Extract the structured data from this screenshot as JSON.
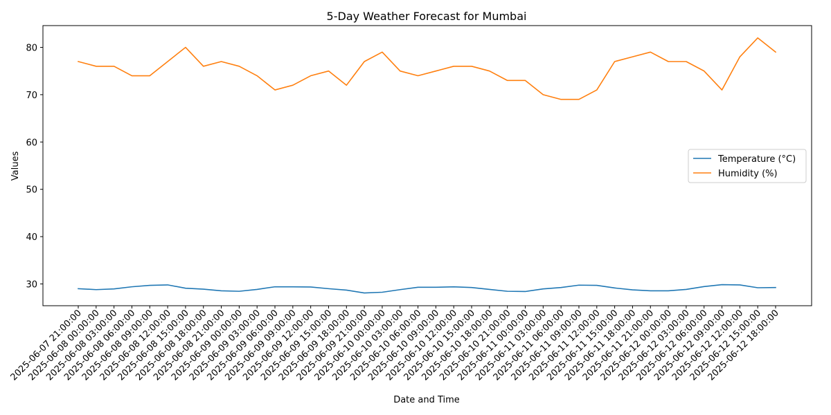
{
  "chart_data": {
    "type": "line",
    "title": "5-Day Weather Forecast for Mumbai",
    "xlabel": "Date and Time",
    "ylabel": "Values",
    "ylim": [
      25.4,
      84.6
    ],
    "yticks": [
      30,
      40,
      50,
      60,
      70,
      80
    ],
    "grid": false,
    "legend_position": "center-right",
    "x": [
      "2025-06-07 21:00:00",
      "2025-06-08 00:00:00",
      "2025-06-08 03:00:00",
      "2025-06-08 06:00:00",
      "2025-06-08 09:00:00",
      "2025-06-08 12:00:00",
      "2025-06-08 15:00:00",
      "2025-06-08 18:00:00",
      "2025-06-08 21:00:00",
      "2025-06-09 00:00:00",
      "2025-06-09 03:00:00",
      "2025-06-09 06:00:00",
      "2025-06-09 09:00:00",
      "2025-06-09 12:00:00",
      "2025-06-09 15:00:00",
      "2025-06-09 18:00:00",
      "2025-06-09 21:00:00",
      "2025-06-10 00:00:00",
      "2025-06-10 03:00:00",
      "2025-06-10 06:00:00",
      "2025-06-10 09:00:00",
      "2025-06-10 12:00:00",
      "2025-06-10 15:00:00",
      "2025-06-10 18:00:00",
      "2025-06-10 21:00:00",
      "2025-06-11 00:00:00",
      "2025-06-11 03:00:00",
      "2025-06-11 06:00:00",
      "2025-06-11 09:00:00",
      "2025-06-11 12:00:00",
      "2025-06-11 15:00:00",
      "2025-06-11 18:00:00",
      "2025-06-11 21:00:00",
      "2025-06-12 00:00:00",
      "2025-06-12 03:00:00",
      "2025-06-12 06:00:00",
      "2025-06-12 09:00:00",
      "2025-06-12 12:00:00",
      "2025-06-12 15:00:00",
      "2025-06-12 18:00:00"
    ],
    "series": [
      {
        "name": "Temperature (°C)",
        "color": "#1f77b4",
        "values": [
          29.0,
          28.8,
          28.95,
          29.4,
          29.7,
          29.8,
          29.1,
          28.9,
          28.55,
          28.45,
          28.85,
          29.4,
          29.4,
          29.35,
          29.0,
          28.7,
          28.1,
          28.25,
          28.8,
          29.3,
          29.3,
          29.4,
          29.25,
          28.85,
          28.45,
          28.4,
          28.95,
          29.25,
          29.75,
          29.7,
          29.15,
          28.75,
          28.55,
          28.55,
          28.85,
          29.45,
          29.85,
          29.8,
          29.2,
          29.25
        ]
      },
      {
        "name": "Humidity (%)",
        "color": "#ff7f0e",
        "values": [
          77,
          76,
          76,
          74,
          74,
          77,
          80,
          76,
          77,
          76,
          74,
          71,
          72,
          74,
          75,
          72,
          77,
          79,
          75,
          74,
          75,
          76,
          76,
          75,
          73,
          73,
          70,
          69,
          69,
          71,
          77,
          78,
          79,
          77,
          77,
          75,
          71,
          78,
          82,
          79
        ]
      }
    ]
  }
}
